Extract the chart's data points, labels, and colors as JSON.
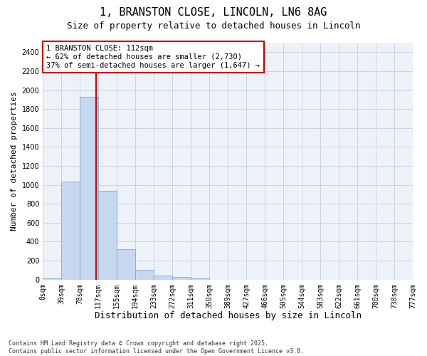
{
  "title_line1": "1, BRANSTON CLOSE, LINCOLN, LN6 8AG",
  "title_line2": "Size of property relative to detached houses in Lincoln",
  "xlabel": "Distribution of detached houses by size in Lincoln",
  "ylabel": "Number of detached properties",
  "bar_values": [
    15,
    1035,
    1930,
    935,
    320,
    105,
    45,
    30,
    15,
    0,
    0,
    0,
    0,
    0,
    0,
    0,
    0,
    0,
    0,
    0
  ],
  "bar_labels": [
    "0sqm",
    "39sqm",
    "78sqm",
    "117sqm",
    "155sqm",
    "194sqm",
    "233sqm",
    "272sqm",
    "311sqm",
    "350sqm",
    "389sqm",
    "427sqm",
    "466sqm",
    "505sqm",
    "544sqm",
    "583sqm",
    "622sqm",
    "661sqm",
    "700sqm",
    "738sqm",
    "777sqm"
  ],
  "bar_color": "#c5d8f0",
  "bar_edge_color": "#7baad4",
  "grid_color": "#c8d4e4",
  "plot_bg_color": "#edf2f9",
  "fig_bg_color": "#ffffff",
  "vline_x": 2.87,
  "vline_color": "#cc0000",
  "annotation_text": "1 BRANSTON CLOSE: 112sqm\n← 62% of detached houses are smaller (2,730)\n37% of semi-detached houses are larger (1,647) →",
  "annotation_box_color": "#ffffff",
  "annotation_box_edge": "#cc0000",
  "ylim": [
    0,
    2500
  ],
  "yticks": [
    0,
    200,
    400,
    600,
    800,
    1000,
    1200,
    1400,
    1600,
    1800,
    2000,
    2200,
    2400
  ],
  "footer_line1": "Contains HM Land Registry data © Crown copyright and database right 2025.",
  "footer_line2": "Contains public sector information licensed under the Open Government Licence v3.0.",
  "title1_fontsize": 11,
  "title2_fontsize": 9,
  "annot_fontsize": 7.5,
  "ylabel_fontsize": 8,
  "xlabel_fontsize": 9,
  "tick_fontsize": 7,
  "footer_fontsize": 6
}
